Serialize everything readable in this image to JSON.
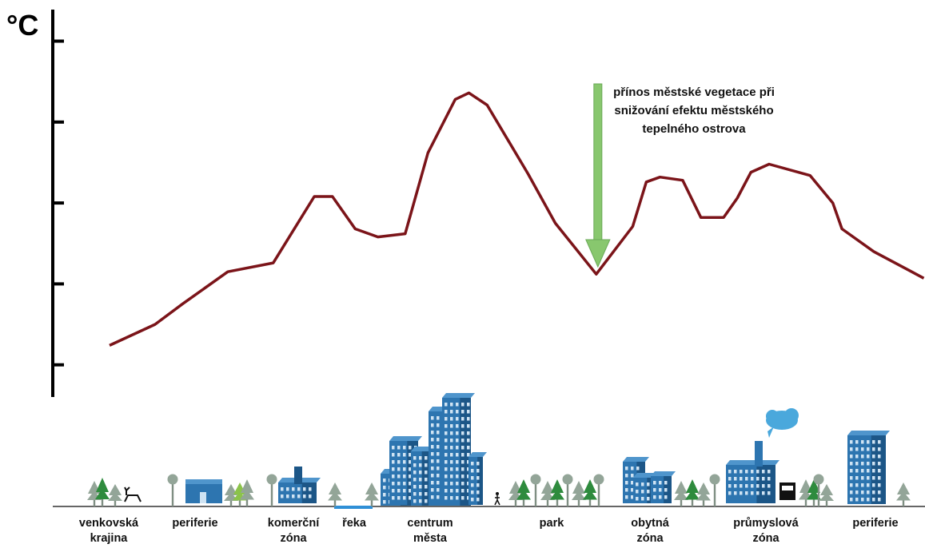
{
  "chart_data": {
    "type": "line",
    "title": "",
    "xlabel": "",
    "ylabel": "°C",
    "y_ticks_labeled": false,
    "grid": false,
    "series": [
      {
        "color": "#7b1419",
        "points": [
          [
            0.0,
            1.24
          ],
          [
            1.0,
            1.5
          ],
          [
            1.6,
            1.75
          ],
          [
            2.6,
            2.15
          ],
          [
            3.6,
            2.26
          ],
          [
            4.5,
            3.08
          ],
          [
            4.9,
            3.08
          ],
          [
            5.4,
            2.68
          ],
          [
            5.9,
            2.58
          ],
          [
            6.5,
            2.62
          ],
          [
            7.0,
            3.62
          ],
          [
            7.6,
            4.28
          ],
          [
            7.9,
            4.36
          ],
          [
            8.3,
            4.21
          ],
          [
            9.2,
            3.36
          ],
          [
            9.8,
            2.75
          ],
          [
            10.7,
            2.12
          ],
          [
            11.5,
            2.71
          ],
          [
            11.8,
            3.26
          ],
          [
            12.1,
            3.32
          ],
          [
            12.6,
            3.28
          ],
          [
            13.0,
            2.82
          ],
          [
            13.5,
            2.82
          ],
          [
            13.8,
            3.06
          ],
          [
            14.1,
            3.38
          ],
          [
            14.5,
            3.48
          ],
          [
            15.4,
            3.34
          ],
          [
            15.9,
            3.0
          ],
          [
            16.1,
            2.68
          ],
          [
            16.8,
            2.4
          ],
          [
            17.9,
            2.07
          ]
        ]
      }
    ],
    "y_tick_count": 5,
    "annotation": {
      "text": "přínos městské vegetace při\nsnižování efektu městského\ntepelného ostrova",
      "arrow_color": "#88c76e",
      "points_to_x": 10.7
    },
    "zones": [
      {
        "key": "rural",
        "label": "venkovská\nkrajina"
      },
      {
        "key": "suburb1",
        "label": "periferie"
      },
      {
        "key": "commercial",
        "label": "komerční\nzóna"
      },
      {
        "key": "river",
        "label": "řeka"
      },
      {
        "key": "downtown",
        "label": "centrum\nměsta"
      },
      {
        "key": "park",
        "label": "park"
      },
      {
        "key": "residential",
        "label": "obytná\nzóna"
      },
      {
        "key": "industrial",
        "label": "průmyslová\nzóna"
      },
      {
        "key": "suburb2",
        "label": "periferie"
      }
    ]
  },
  "colors": {
    "building": "#2d75b0",
    "building_dark": "#1c5687",
    "tree": "#93a598",
    "tree_green": "#2e8b3d",
    "tree_light": "#8bc34a",
    "cloud": "#4aa8dc",
    "river": "#2f8fd6"
  }
}
